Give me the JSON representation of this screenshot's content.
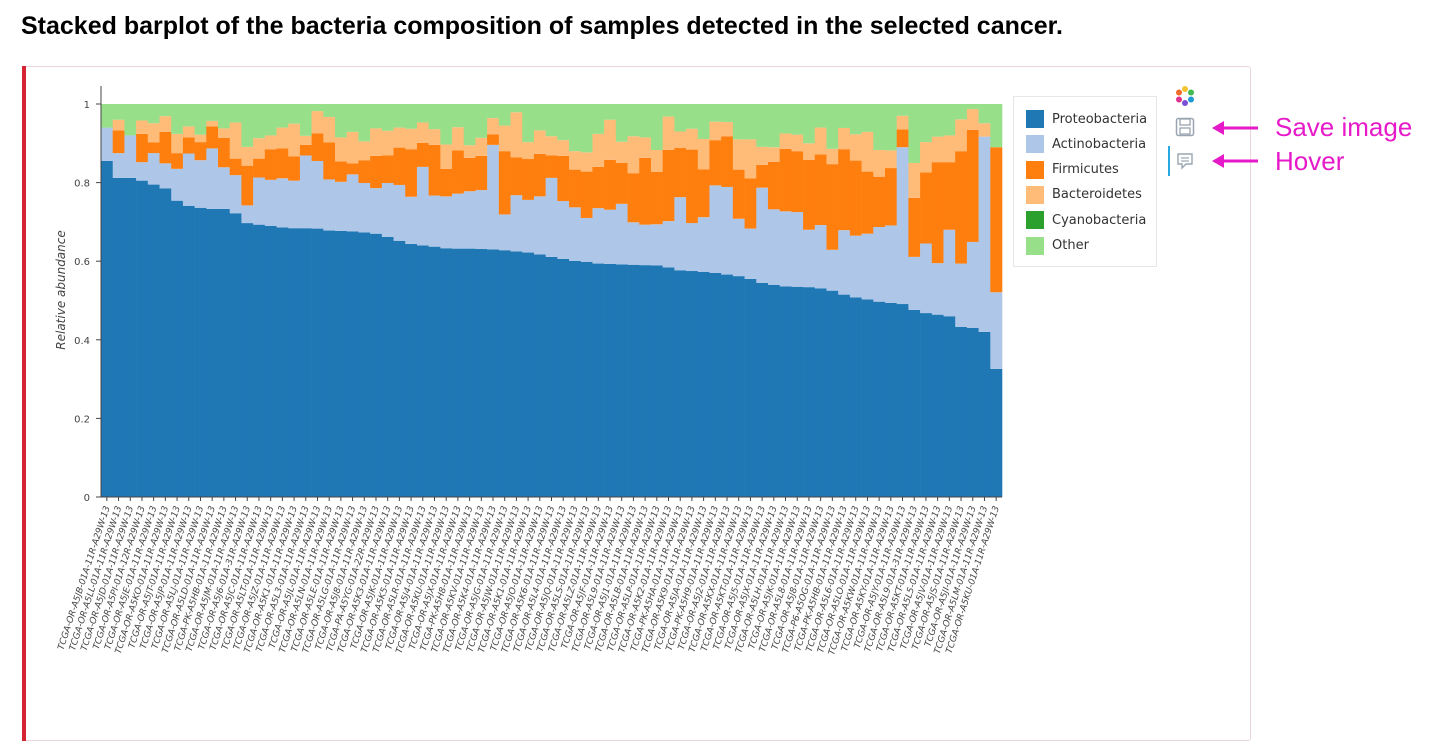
{
  "page": {
    "title": "Stacked barplot of the bacteria composition of samples detected in the selected cancer."
  },
  "toolbar": {
    "save_label": "Save image",
    "hover_label": "Hover"
  },
  "colors": {
    "Proteobacteria": "#1f77b4",
    "Actinobacteria": "#aec7e8",
    "Firmicutes": "#ff7f0e",
    "Bacteroidetes": "#ffbb78",
    "Cyanobacteria": "#2ca02c",
    "Other": "#98df8a",
    "accent": "#d52532",
    "annotation": "#e61ac9"
  },
  "chart_data": {
    "type": "bar",
    "stacked": true,
    "title": "",
    "xlabel": "",
    "ylabel": "Relative abundance",
    "ylim": [
      0,
      1
    ],
    "yticks": [
      0,
      0.2,
      0.4,
      0.6,
      0.8,
      1
    ],
    "ytick_labels": [
      "0",
      "0.2",
      "0.4",
      "0.6",
      "0.8",
      "1"
    ],
    "legend_position": "top-right",
    "grid": false,
    "categories": [
      "TCGA-OR-A5JB-01A-11R-A29W-13",
      "TCGA-OR-A5LL-01A-11R-A29W-13",
      "TCGA-OR-A5JD-01A-11R-A29W-13",
      "TCGA-OR-A5PI-01A-12R-A29W-13",
      "TCGA-OR-A5JE-01A-11R-A29W-13",
      "TCGA-OR-A5KO-01A-11R-A29W-13",
      "TCGA-OR-A5JT-01A-11R-A29W-13",
      "TCGA-OR-A5JP-01A-11R-A29W-13",
      "TCGA-OR-A5LJ-01A-11R-A29W-13",
      "TCGA-OR-A5LD-01A-11R-A29W-13",
      "TCGA-PK-A5HB-01A-11R-A29W-13",
      "TCGA-OR-A5JM-01A-11R-A29W-13",
      "TCGA-OR-A5J6-01A-31R-A29W-13",
      "TCGA-OR-A5JC-01A-11R-A29W-13",
      "TCGA-OR-A5LT-01A-11R-A29W-13",
      "TCGA-OR-A5JZ-01A-11R-A29W-13",
      "TCGA-OR-A5K1-01A-11R-A29W-13",
      "TCGA-OR-A5L3-01A-11R-A29W-13",
      "TCGA-OR-A5JL-01A-11R-A29W-13",
      "TCGA-OR-A5LN-01A-11R-A29W-13",
      "TCGA-OR-A5LE-01A-11R-A29W-13",
      "TCGA-OR-A5LG-01A-11R-A29W-13",
      "TCGA-OR-A5J8-01A-11R-A29W-13",
      "TCGA-PA-A5YG-01A-22R-A29W-13",
      "TCGA-OR-A5K3-01A-11R-A29W-13",
      "TCGA-OR-A5JK-01A-11R-A29W-13",
      "TCGA-OR-A5K5-01A-11R-A29W-13",
      "TCGA-OR-A5LR-01A-11R-A29W-13",
      "TCGA-OR-A5J4-01A-11R-A29W-13",
      "TCGA-OR-A5KU-01A-11R-A29W-13",
      "TCGA-OR-A5JX-01A-11R-A29W-13",
      "TCGA-PK-A5H8-01A-11R-A29W-13",
      "TCGA-OR-A5KV-01A-11R-A29W-13",
      "TCGA-OR-A5K4-01A-11R-A29W-13",
      "TCGA-OR-A5JG-01A-11R-A29W-13",
      "TCGA-OR-A5JW-01A-11R-A29W-13",
      "TCGA-OR-A5K1-01A-11R-A29W-13",
      "TCGA-OR-A5JO-01A-11R-A29W-13",
      "TCGA-OR-A5K6-01A-11R-A29W-13",
      "TCGA-OR-A5L4-01A-11R-A29W-13",
      "TCGA-OR-A5JQ-01A-11R-A29W-13",
      "TCGA-OR-A5LS-01A-11R-A29W-13",
      "TCGA-OR-A5LZ-01A-11R-A29W-13",
      "TCGA-OR-A5JF-01A-11R-A29W-13",
      "TCGA-OR-A5L9-01A-11R-A29W-13",
      "TCGA-OR-A5J1-01A-11R-A29W-13",
      "TCGA-OR-A5LB-01A-11R-A29W-13",
      "TCGA-OR-A5LP-01A-11R-A29W-13",
      "TCGA-OR-A5K2-01A-11R-A29W-13",
      "TCGA-PK-A5HA-01A-11R-A29W-13",
      "TCGA-OR-A5K9-01A-11R-A29W-13",
      "TCGA-OR-A5JA-01A-11R-A29W-13",
      "TCGA-PK-A5H9-01A-11R-A29W-13",
      "TCGA-OR-A5J2-01A-11R-A29W-13",
      "TCGA-OR-A5KX-01A-11R-A29W-13",
      "TCGA-OR-A5KT-01A-11R-A29W-13",
      "TCGA-OR-A5J5-01A-11R-A29W-13",
      "TCGA-OR-A5JX-01A-11R-A29W-13",
      "TCGA-OR-A5LH-01A-11R-A29W-13",
      "TCGA-OR-A5JK-01A-11R-A29W-13",
      "TCGA-OR-A5L8-01A-11R-A29W-13",
      "TCGA-OR-A5J8-01A-11R-A29W-13",
      "TCGA-P6-A5OG-01A-11R-A29W-13",
      "TCGA-PK-A5HB-01A-11R-A29W-13",
      "TCGA-OR-A5L6-01A-11R-A29W-13",
      "TCGA-OR-A5LO-01A-11R-A29W-13",
      "TCGA-OR-A5KW-01A-11R-A29W-13",
      "TCGA-OR-A5KY-01A-11R-A29W-13",
      "TCGA-OR-A5JY-01A-11R-A29W-13",
      "TCGA-OR-A5L9-01A-31R-A29W-13",
      "TCGA-OR-A5KT-01A-11R-A29W-13",
      "TCGA-OR-A5L5-01A-11R-A29W-13",
      "TCGA-OR-A5JV-01A-11R-A29W-13",
      "TCGA-OR-A5JS-01A-11R-A29W-13",
      "TCGA-OR-A5JI-01A-11R-A29W-13",
      "TCGA-OR-A5LM-01A-11R-A29W-13",
      "TCGA-OR-A5KU-01A-11R-A29W-13"
    ],
    "series": [
      {
        "name": "Proteobacteria",
        "values": [
          0.855,
          0.812,
          0.812,
          0.805,
          0.795,
          0.785,
          0.754,
          0.741,
          0.736,
          0.733,
          0.733,
          0.722,
          0.697,
          0.693,
          0.69,
          0.686,
          0.684,
          0.684,
          0.683,
          0.678,
          0.677,
          0.676,
          0.673,
          0.67,
          0.662,
          0.652,
          0.644,
          0.64,
          0.637,
          0.633,
          0.632,
          0.632,
          0.631,
          0.63,
          0.628,
          0.625,
          0.622,
          0.617,
          0.611,
          0.606,
          0.601,
          0.598,
          0.594,
          0.593,
          0.592,
          0.591,
          0.59,
          0.589,
          0.584,
          0.577,
          0.575,
          0.573,
          0.57,
          0.566,
          0.562,
          0.555,
          0.545,
          0.54,
          0.536,
          0.535,
          0.534,
          0.531,
          0.525,
          0.515,
          0.508,
          0.503,
          0.497,
          0.494,
          0.491,
          0.476,
          0.468,
          0.464,
          0.46,
          0.433,
          0.43,
          0.42,
          0.326
        ]
      },
      {
        "name": "Actinobacteria",
        "values": [
          0.085,
          0.063,
          0.108,
          0.047,
          0.08,
          0.064,
          0.081,
          0.133,
          0.121,
          0.154,
          0.106,
          0.097,
          0.045,
          0.12,
          0.117,
          0.125,
          0.121,
          0.185,
          0.172,
          0.13,
          0.125,
          0.145,
          0.126,
          0.116,
          0.137,
          0.142,
          0.12,
          0.2,
          0.13,
          0.132,
          0.14,
          0.146,
          0.15,
          0.266,
          0.091,
          0.143,
          0.134,
          0.148,
          0.201,
          0.147,
          0.136,
          0.112,
          0.141,
          0.138,
          0.154,
          0.108,
          0.103,
          0.105,
          0.118,
          0.186,
          0.122,
          0.139,
          0.223,
          0.223,
          0.146,
          0.128,
          0.242,
          0.192,
          0.191,
          0.19,
          0.146,
          0.161,
          0.104,
          0.164,
          0.157,
          0.167,
          0.19,
          0.197,
          0.399,
          0.135,
          0.177,
          0.131,
          0.22,
          0.161,
          0.219,
          0.497,
          0.195
        ]
      },
      {
        "name": "Firmicutes",
        "values": [
          0.0,
          0.058,
          0.0,
          0.072,
          0.027,
          0.08,
          0.04,
          0.041,
          0.046,
          0.056,
          0.075,
          0.042,
          0.101,
          0.048,
          0.078,
          0.076,
          0.062,
          0.027,
          0.07,
          0.094,
          0.052,
          0.028,
          0.058,
          0.082,
          0.07,
          0.095,
          0.121,
          0.061,
          0.129,
          0.07,
          0.11,
          0.085,
          0.087,
          0.027,
          0.161,
          0.096,
          0.104,
          0.108,
          0.057,
          0.115,
          0.096,
          0.118,
          0.105,
          0.127,
          0.104,
          0.125,
          0.17,
          0.133,
          0.181,
          0.125,
          0.187,
          0.122,
          0.115,
          0.129,
          0.125,
          0.128,
          0.058,
          0.121,
          0.159,
          0.155,
          0.178,
          0.18,
          0.218,
          0.206,
          0.191,
          0.158,
          0.128,
          0.146,
          0.045,
          0.15,
          0.181,
          0.257,
          0.172,
          0.286,
          0.285,
          0.0,
          0.369
        ]
      },
      {
        "name": "Bacteroidetes",
        "values": [
          0.0,
          0.027,
          0.0,
          0.034,
          0.049,
          0.04,
          0.049,
          0.028,
          0.019,
          0.014,
          0.024,
          0.092,
          0.048,
          0.052,
          0.035,
          0.053,
          0.083,
          0.023,
          0.057,
          0.065,
          0.061,
          0.08,
          0.048,
          0.07,
          0.063,
          0.051,
          0.052,
          0.052,
          0.04,
          0.062,
          0.059,
          0.032,
          0.046,
          0.041,
          0.065,
          0.115,
          0.043,
          0.06,
          0.049,
          0.04,
          0.047,
          0.049,
          0.084,
          0.102,
          0.054,
          0.094,
          0.052,
          0.056,
          0.085,
          0.042,
          0.053,
          0.077,
          0.047,
          0.036,
          0.077,
          0.099,
          0.046,
          0.037,
          0.039,
          0.042,
          0.042,
          0.068,
          0.039,
          0.054,
          0.067,
          0.101,
          0.068,
          0.045,
          0.035,
          0.089,
          0.077,
          0.065,
          0.068,
          0.081,
          0.053,
          0.034,
          0.0
        ]
      },
      {
        "name": "Cyanobacteria",
        "values": [
          0.0,
          0.0,
          0.0,
          0.0,
          0.0,
          0.0,
          0.0,
          0.0,
          0.0,
          0.0,
          0.0,
          0.0,
          0.0,
          0.0,
          0.0,
          0.0,
          0.0,
          0.0,
          0.0,
          0.0,
          0.0,
          0.0,
          0.0,
          0.0,
          0.0,
          0.0,
          0.0,
          0.0,
          0.0,
          0.0,
          0.0,
          0.0,
          0.0,
          0.0,
          0.0,
          0.0,
          0.0,
          0.0,
          0.0,
          0.0,
          0.0,
          0.0,
          0.0,
          0.0,
          0.0,
          0.0,
          0.0,
          0.0,
          0.0,
          0.0,
          0.0,
          0.0,
          0.0,
          0.0,
          0.0,
          0.0,
          0.0,
          0.0,
          0.0,
          0.0,
          0.0,
          0.0,
          0.0,
          0.0,
          0.0,
          0.0,
          0.0,
          0.0,
          0.0,
          0.0,
          0.0,
          0.0,
          0.0,
          0.0,
          0.0,
          0.0,
          0.0
        ]
      },
      {
        "name": "Other",
        "values": [
          0.06,
          0.04,
          0.08,
          0.042,
          0.049,
          0.031,
          0.076,
          0.057,
          0.078,
          0.043,
          0.062,
          0.047,
          0.109,
          0.087,
          0.08,
          0.06,
          0.05,
          0.081,
          0.018,
          0.033,
          0.085,
          0.071,
          0.095,
          0.062,
          0.068,
          0.06,
          0.063,
          0.047,
          0.064,
          0.103,
          0.059,
          0.105,
          0.086,
          0.036,
          0.055,
          0.021,
          0.097,
          0.067,
          0.082,
          0.092,
          0.12,
          0.123,
          0.076,
          0.04,
          0.096,
          0.082,
          0.085,
          0.117,
          0.032,
          0.07,
          0.063,
          0.089,
          0.045,
          0.046,
          0.09,
          0.09,
          0.109,
          0.11,
          0.075,
          0.078,
          0.1,
          0.06,
          0.114,
          0.061,
          0.077,
          0.071,
          0.117,
          0.118,
          0.03,
          0.15,
          0.097,
          0.083,
          0.08,
          0.039,
          0.013,
          0.049,
          0.11
        ]
      }
    ]
  }
}
